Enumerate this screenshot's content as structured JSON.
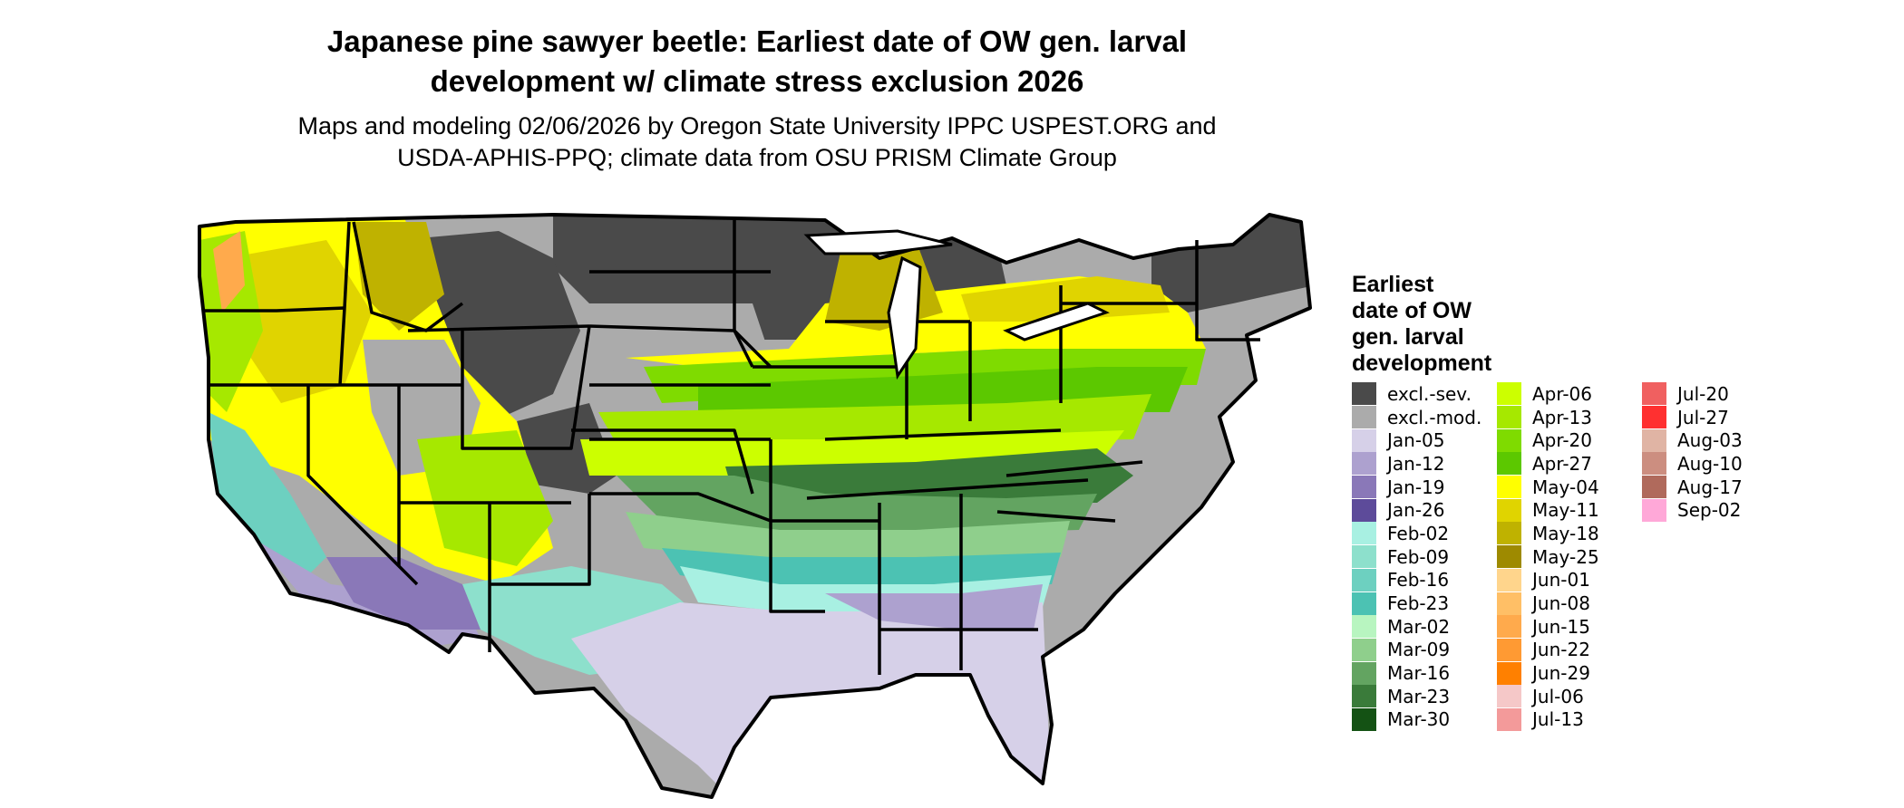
{
  "title_lines": [
    "Japanese pine sawyer beetle: Earliest date of OW gen. larval",
    "development w/ climate stress exclusion 2026"
  ],
  "subtitle_lines": [
    "Maps and modeling 02/06/2026 by Oregon State University IPPC USPEST.ORG and",
    "USDA-APHIS-PPQ; climate data from OSU PRISM Climate Group"
  ],
  "legend": {
    "title_lines": [
      "Earliest",
      "date of OW",
      "gen. larval",
      "development"
    ],
    "items": [
      {
        "label": "excl.-sev.",
        "color": "#4a4a4a"
      },
      {
        "label": "excl.-mod.",
        "color": "#ababab"
      },
      {
        "label": "Jan-05",
        "color": "#d6d0e8"
      },
      {
        "label": "Jan-12",
        "color": "#ada1cf"
      },
      {
        "label": "Jan-19",
        "color": "#8a78b8"
      },
      {
        "label": "Jan-26",
        "color": "#5d4b9a"
      },
      {
        "label": "Feb-02",
        "color": "#a8f0e2"
      },
      {
        "label": "Feb-09",
        "color": "#8de0cc"
      },
      {
        "label": "Feb-16",
        "color": "#6dd0c0"
      },
      {
        "label": "Feb-23",
        "color": "#4cc2b3"
      },
      {
        "label": "Mar-02",
        "color": "#b8f5c0"
      },
      {
        "label": "Mar-09",
        "color": "#8fcf8c"
      },
      {
        "label": "Mar-16",
        "color": "#63a461"
      },
      {
        "label": "Mar-23",
        "color": "#3a7b3a"
      },
      {
        "label": "Mar-30",
        "color": "#145214"
      },
      {
        "label": "Apr-06",
        "color": "#ccff00"
      },
      {
        "label": "Apr-13",
        "color": "#a6e800"
      },
      {
        "label": "Apr-20",
        "color": "#7fdb00"
      },
      {
        "label": "Apr-27",
        "color": "#5cc800"
      },
      {
        "label": "May-04",
        "color": "#ffff00"
      },
      {
        "label": "May-11",
        "color": "#e0d400"
      },
      {
        "label": "May-18",
        "color": "#bfb200"
      },
      {
        "label": "May-25",
        "color": "#9e8a00"
      },
      {
        "label": "Jun-01",
        "color": "#ffd58c"
      },
      {
        "label": "Jun-08",
        "color": "#ffbf66"
      },
      {
        "label": "Jun-15",
        "color": "#ffaa4c"
      },
      {
        "label": "Jun-22",
        "color": "#ff9a33"
      },
      {
        "label": "Jun-29",
        "color": "#ff8000"
      },
      {
        "label": "Jul-06",
        "color": "#f5c8c8"
      },
      {
        "label": "Jul-13",
        "color": "#f39a9a"
      },
      {
        "label": "Jul-20",
        "color": "#f06060"
      },
      {
        "label": "Jul-27",
        "color": "#ff3030"
      },
      {
        "label": "Aug-03",
        "color": "#e0b4a4"
      },
      {
        "label": "Aug-10",
        "color": "#cc8e80"
      },
      {
        "label": "Aug-17",
        "color": "#b06a5c"
      },
      {
        "label": "Sep-02",
        "color": "#ffa8d8"
      }
    ]
  }
}
